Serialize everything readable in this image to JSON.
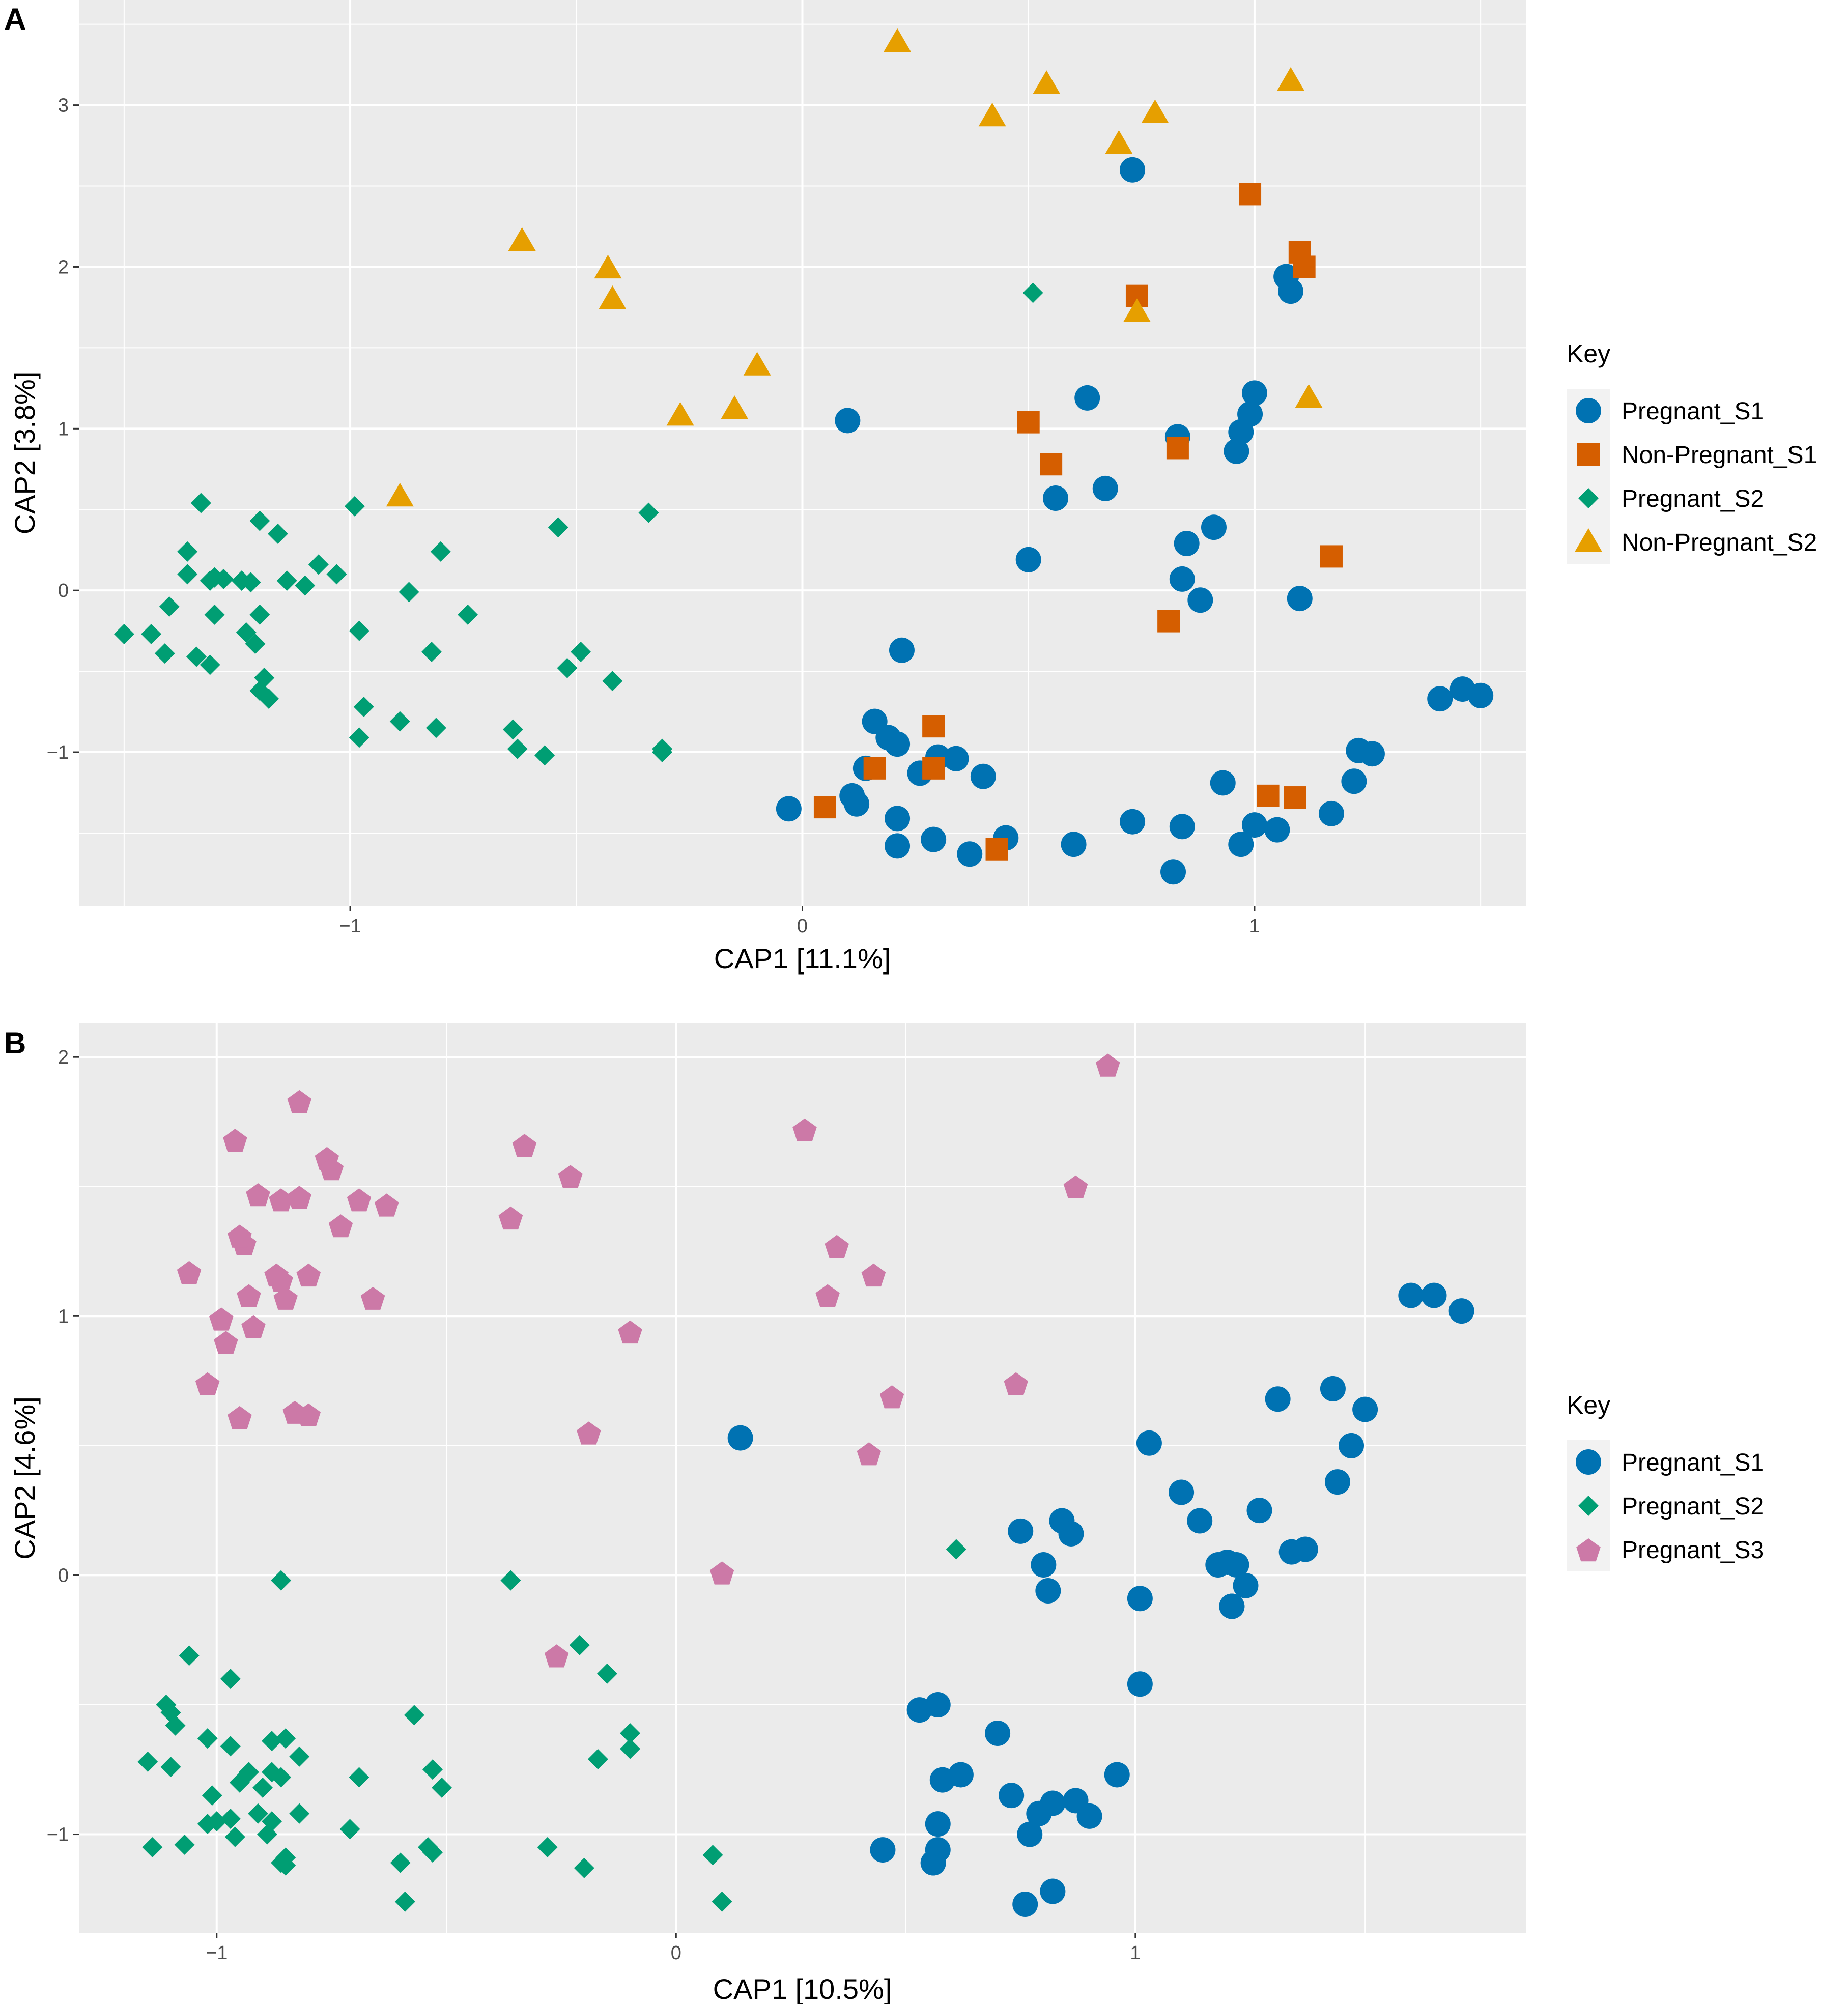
{
  "chart_data": [
    {
      "type": "scatter",
      "panel_label": "A",
      "title": "",
      "xlabel": "CAP1   [11.1%]",
      "ylabel": "CAP2   [3.8%]",
      "xlim": [
        -1.6,
        1.6
      ],
      "ylim": [
        -1.95,
        3.65
      ],
      "x_ticks": [
        -1,
        0,
        1
      ],
      "x_tick_labels": [
        "−1",
        "0",
        "1"
      ],
      "y_ticks": [
        -1,
        0,
        1,
        2,
        3
      ],
      "y_tick_labels": [
        "−1",
        "0",
        "1",
        "2",
        "3"
      ],
      "grid": true,
      "legend_position": "right",
      "legend_title": "Key",
      "series": [
        {
          "name": "Pregnant_S1",
          "color": "#0072B2",
          "shape": "circle",
          "x": [
            0.73,
            1.07,
            1.08,
            0.1,
            0.63,
            1.0,
            0.99,
            0.97,
            0.83,
            0.96,
            0.56,
            0.67,
            0.91,
            0.85,
            0.5,
            0.84,
            0.88,
            1.1,
            0.22,
            0.16,
            0.19,
            0.21,
            0.3,
            0.34,
            0.14,
            0.11,
            0.26,
            0.4,
            -0.03,
            0.12,
            0.21,
            0.21,
            0.29,
            0.37,
            0.45,
            0.6,
            0.73,
            0.84,
            0.93,
            0.97,
            1.0,
            1.05,
            1.17,
            1.22,
            1.23,
            1.26,
            1.41,
            1.46,
            1.5,
            0.82
          ],
          "y": [
            2.6,
            1.94,
            1.85,
            1.05,
            1.19,
            1.22,
            1.09,
            0.98,
            0.95,
            0.86,
            0.57,
            0.63,
            0.39,
            0.29,
            0.19,
            0.07,
            -0.06,
            -0.05,
            -0.37,
            -0.81,
            -0.91,
            -0.95,
            -1.03,
            -1.04,
            -1.1,
            -1.27,
            -1.13,
            -1.15,
            -1.35,
            -1.32,
            -1.41,
            -1.58,
            -1.54,
            -1.63,
            -1.53,
            -1.57,
            -1.43,
            -1.46,
            -1.19,
            -1.57,
            -1.45,
            -1.48,
            -1.38,
            -1.18,
            -0.99,
            -1.01,
            -0.67,
            -0.61,
            -0.65,
            -1.74
          ]
        },
        {
          "name": "Non-Pregnant_S1",
          "color": "#D55E00",
          "shape": "square",
          "x": [
            0.99,
            1.1,
            1.11,
            0.74,
            0.5,
            0.55,
            0.83,
            1.17,
            0.81,
            0.29,
            0.16,
            0.29,
            0.05,
            0.43,
            1.03,
            1.09
          ],
          "y": [
            2.45,
            2.09,
            2.0,
            1.82,
            1.04,
            0.78,
            0.88,
            0.21,
            -0.19,
            -0.84,
            -1.1,
            -1.1,
            -1.34,
            -1.6,
            -1.27,
            -1.28
          ]
        },
        {
          "name": "Pregnant_S2",
          "color": "#009E73",
          "shape": "diamond",
          "x": [
            0.51,
            -1.33,
            -0.99,
            -1.2,
            -1.16,
            -0.54,
            -0.34,
            -1.36,
            -0.8,
            -1.31,
            -1.24,
            -1.28,
            -1.22,
            -1.14,
            -1.1,
            -1.07,
            -1.03,
            -1.36,
            -1.3,
            -0.87,
            -1.4,
            -1.44,
            -1.3,
            -1.2,
            -0.74,
            -1.5,
            -1.23,
            -0.98,
            -1.41,
            -1.34,
            -1.31,
            -0.82,
            -0.49,
            -0.52,
            -0.42,
            -0.97,
            -1.19,
            -1.2,
            -0.81,
            -0.89,
            -0.98,
            -0.64,
            -0.63,
            -0.57,
            -0.31,
            -0.31,
            -1.18,
            -1.21
          ],
          "y": [
            1.84,
            0.54,
            0.52,
            0.43,
            0.35,
            0.39,
            0.48,
            0.24,
            0.24,
            0.06,
            0.06,
            0.07,
            0.05,
            0.06,
            0.03,
            0.16,
            0.1,
            0.1,
            0.08,
            -0.01,
            -0.1,
            -0.27,
            -0.15,
            -0.15,
            -0.15,
            -0.27,
            -0.26,
            -0.25,
            -0.39,
            -0.41,
            -0.46,
            -0.38,
            -0.38,
            -0.48,
            -0.56,
            -0.72,
            -0.54,
            -0.62,
            -0.85,
            -0.81,
            -0.91,
            -0.86,
            -0.98,
            -1.02,
            -0.98,
            -1.0,
            -0.67,
            -0.33
          ]
        },
        {
          "name": "Non-Pregnant_S2",
          "color": "#E69F00",
          "shape": "triangle",
          "x": [
            0.21,
            0.54,
            1.08,
            0.42,
            0.78,
            0.7,
            -0.62,
            -0.43,
            -0.42,
            0.74,
            -0.1,
            -0.15,
            -0.27,
            1.12,
            -0.89
          ],
          "y": [
            3.39,
            3.13,
            3.15,
            2.93,
            2.95,
            2.76,
            2.16,
            1.99,
            1.8,
            1.72,
            1.39,
            1.12,
            1.08,
            1.19,
            0.58
          ]
        }
      ]
    },
    {
      "type": "scatter",
      "panel_label": "B",
      "title": "",
      "xlabel": "CAP1   [10.5%]",
      "ylabel": "CAP2   [4.6%]",
      "xlim": [
        -1.3,
        1.85
      ],
      "ylim": [
        -1.38,
        2.13
      ],
      "x_ticks": [
        -1,
        0,
        1
      ],
      "x_tick_labels": [
        "−1",
        "0",
        "1"
      ],
      "y_ticks": [
        -1,
        0,
        1,
        2
      ],
      "y_tick_labels": [
        "−1",
        "0",
        "1",
        "2"
      ],
      "grid": true,
      "legend_position": "right",
      "legend_title": "Key",
      "series": [
        {
          "name": "Pregnant_S1",
          "color": "#0072B2",
          "shape": "circle",
          "x": [
            1.6,
            1.65,
            1.71,
            1.43,
            1.5,
            1.47,
            1.31,
            1.44,
            0.14,
            1.03,
            1.1,
            1.27,
            1.14,
            1.18,
            1.2,
            1.22,
            1.24,
            1.34,
            1.37,
            0.75,
            0.84,
            0.86,
            0.8,
            0.81,
            1.01,
            1.21,
            1.21,
            1.01,
            0.53,
            0.57,
            0.7,
            0.58,
            0.62,
            0.57,
            0.73,
            0.79,
            0.82,
            0.87,
            0.9,
            0.96,
            0.56,
            0.77,
            0.57,
            0.45,
            0.56,
            0.76,
            0.82
          ],
          "y": [
            1.08,
            1.08,
            1.02,
            0.72,
            0.64,
            0.5,
            0.68,
            0.36,
            0.53,
            0.51,
            0.32,
            0.25,
            0.21,
            0.04,
            0.05,
            0.04,
            -0.04,
            0.09,
            0.1,
            0.17,
            0.21,
            0.16,
            0.04,
            -0.06,
            -0.09,
            -0.12,
            -0.12,
            -0.42,
            -0.52,
            -0.5,
            -0.61,
            -0.79,
            -0.77,
            -0.96,
            -0.85,
            -0.92,
            -0.88,
            -0.87,
            -0.93,
            -0.77,
            -1.11,
            -1.0,
            -1.06,
            -1.06,
            -1.11,
            -1.27,
            -1.22
          ]
        },
        {
          "name": "Pregnant_S2",
          "color": "#009E73",
          "shape": "diamond",
          "x": [
            0.61,
            -0.86,
            -0.36,
            -0.21,
            -0.15,
            -0.97,
            -1.06,
            -0.17,
            -1.11,
            -0.57,
            -1.1,
            -1.09,
            -0.97,
            -0.85,
            -0.88,
            -0.93,
            -1.02,
            -0.1,
            -0.1,
            -1.01,
            -0.9,
            -1.15,
            -1.1,
            -0.82,
            -0.88,
            -0.86,
            -0.95,
            -0.91,
            -0.69,
            -0.53,
            -0.51,
            -0.82,
            -1.0,
            -0.96,
            -0.88,
            -0.85,
            -0.71,
            -0.6,
            -0.53,
            -0.54,
            -1.02,
            -0.97,
            -0.89,
            -1.07,
            -1.14,
            -0.28,
            -0.86,
            -0.85,
            -0.2,
            0.08,
            -0.59,
            0.1
          ],
          "y": [
            0.1,
            -0.02,
            -0.02,
            -0.27,
            -0.38,
            -0.4,
            -0.31,
            -0.71,
            -0.5,
            -0.54,
            -0.53,
            -0.58,
            -0.66,
            -0.63,
            -0.64,
            -0.76,
            -0.63,
            -0.61,
            -0.67,
            -0.85,
            -0.82,
            -0.72,
            -0.74,
            -0.7,
            -0.76,
            -0.78,
            -0.8,
            -0.92,
            -0.78,
            -0.75,
            -0.82,
            -0.92,
            -0.95,
            -1.01,
            -0.95,
            -1.09,
            -0.98,
            -1.11,
            -1.07,
            -1.05,
            -0.96,
            -0.94,
            -1.0,
            -1.04,
            -1.05,
            -1.05,
            -1.11,
            -1.12,
            -1.13,
            -1.08,
            -1.26,
            -1.26
          ]
        },
        {
          "name": "Pregnant_S3",
          "color": "#CC79A7",
          "shape": "pentagon",
          "x": [
            0.94,
            -0.82,
            0.28,
            -0.96,
            -0.33,
            -0.76,
            -0.23,
            -0.75,
            -0.63,
            -0.91,
            -0.86,
            -0.82,
            -0.69,
            -0.36,
            -0.73,
            0.35,
            -0.94,
            -0.95,
            -1.06,
            -0.87,
            -0.8,
            -0.85,
            0.43,
            -0.93,
            -0.86,
            0.33,
            -0.66,
            -0.99,
            -0.92,
            -0.1,
            -0.98,
            -1.02,
            -0.83,
            -0.8,
            -0.95,
            0.87,
            0.47,
            0.74,
            -0.19,
            0.42,
            0.1,
            -0.26
          ],
          "y": [
            1.97,
            1.83,
            1.72,
            1.68,
            1.66,
            1.61,
            1.54,
            1.57,
            1.43,
            1.47,
            1.45,
            1.46,
            1.45,
            1.38,
            1.35,
            1.27,
            1.28,
            1.31,
            1.17,
            1.16,
            1.16,
            1.07,
            1.16,
            1.08,
            1.14,
            1.08,
            1.07,
            0.99,
            0.96,
            0.94,
            0.9,
            0.74,
            0.63,
            0.62,
            0.61,
            1.5,
            0.69,
            0.74,
            0.55,
            0.47,
            0.01,
            -0.31
          ]
        }
      ]
    }
  ]
}
